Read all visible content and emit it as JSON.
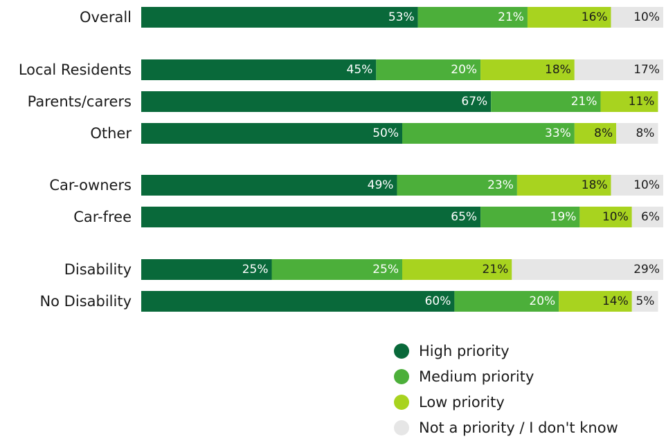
{
  "chart_data": {
    "type": "bar",
    "orientation": "horizontal",
    "stacked": true,
    "normalized": true,
    "categories": [
      "Overall",
      "Local Residents",
      "Parents/carers",
      "Other",
      "Car-owners",
      "Car-free",
      "Disability",
      "No Disability"
    ],
    "groups": [
      [
        "Overall"
      ],
      [
        "Local Residents",
        "Parents/carers",
        "Other"
      ],
      [
        "Car-owners",
        "Car-free"
      ],
      [
        "Disability",
        "No Disability"
      ]
    ],
    "series": [
      {
        "name": "High priority",
        "color": "#09693A",
        "label_color": "#ffffff",
        "values": [
          53,
          45,
          67,
          50,
          49,
          65,
          25,
          60
        ]
      },
      {
        "name": "Medium priority",
        "color": "#4CAF3A",
        "label_color": "#ffffff",
        "values": [
          21,
          20,
          21,
          33,
          23,
          19,
          25,
          20
        ]
      },
      {
        "name": "Low priority",
        "color": "#A8D31F",
        "label_color": "#1a1a1a",
        "values": [
          16,
          18,
          11,
          8,
          18,
          10,
          21,
          14
        ]
      },
      {
        "name": "Not a priority / I don't know",
        "color": "#E6E6E6",
        "label_color": "#1a1a1a",
        "values": [
          10,
          17,
          0,
          8,
          10,
          6,
          29,
          5
        ]
      }
    ],
    "value_labels": [
      [
        "53%",
        "21%",
        "16%",
        "10%"
      ],
      [
        "45%",
        "20%",
        "18%",
        "17%"
      ],
      [
        "67%",
        "21%",
        "11%",
        ""
      ],
      [
        "50%",
        "33%",
        "8%",
        "8%"
      ],
      [
        "49%",
        "23%",
        "18%",
        "10%"
      ],
      [
        "65%",
        "19%",
        "10%",
        "6%"
      ],
      [
        "25%",
        "25%",
        "21%",
        "29%"
      ],
      [
        "60%",
        "20%",
        "14%",
        "5%"
      ]
    ],
    "xlim": [
      0,
      100
    ],
    "title": "",
    "xlabel": "",
    "ylabel": "",
    "grid": false,
    "legend_position": "bottom-right"
  }
}
